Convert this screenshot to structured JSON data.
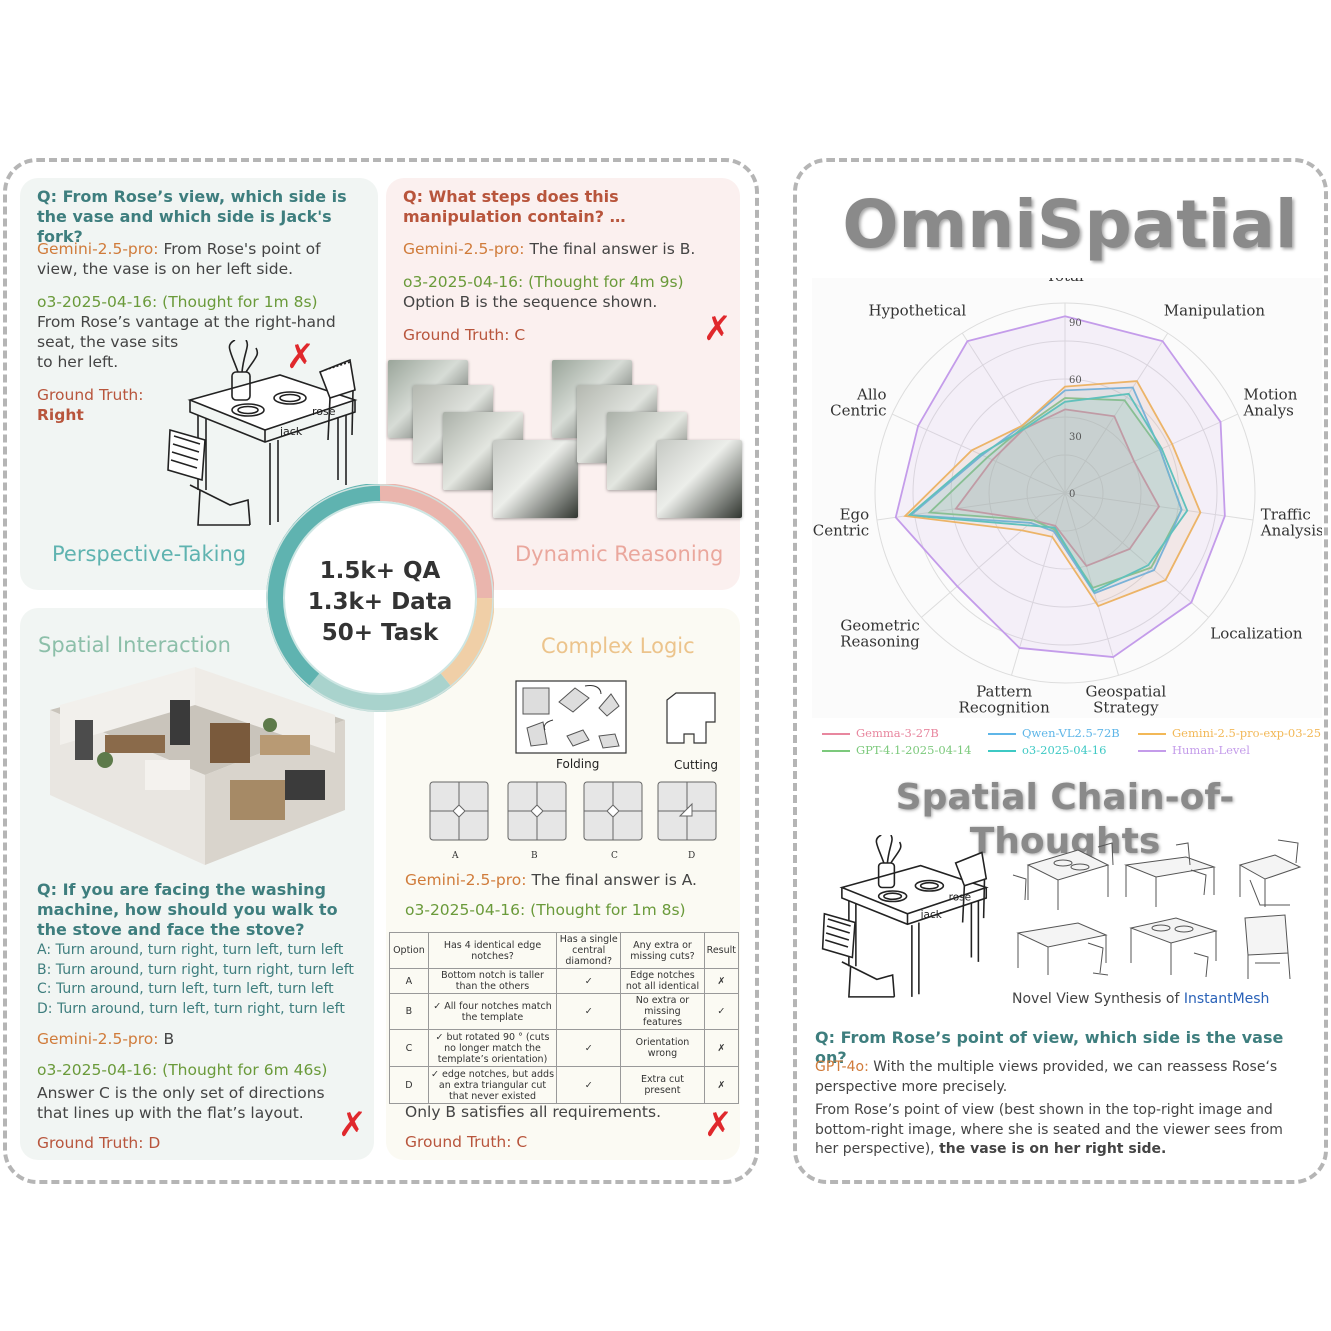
{
  "perspective_panel": {
    "question": "Q: From Rose’s view, which side is the vase and which side is Jack's fork?",
    "gemini_model": "Gemini-2.5-pro:",
    "gemini_answer": "From Rose's point of view, the vase is on her left side.",
    "o3_model": "o3-2025-04-16: (Thought for 1m 8s)",
    "o3_answer_line1": "From Rose’s vantage at the right-hand",
    "o3_answer_line2": "seat, the vase sits",
    "o3_answer_line3": "to her left.",
    "gt_label": "Ground Truth:",
    "gt_value": "Right",
    "cross": "✗",
    "rose_label": "rose",
    "jack_label": "jack",
    "title": "Perspective-Taking"
  },
  "dynamic_panel": {
    "question": "Q: What steps does this manipulation contain? …",
    "gemini_model": "Gemini-2.5-pro:",
    "gemini_answer": "The final answer is B.",
    "o3_model": "o3-2025-04-16: (Thought for 4m 9s)",
    "o3_answer": "Option B is the sequence shown.",
    "gt": "Ground Truth: C",
    "cross": "✗",
    "title": "Dynamic Reasoning"
  },
  "center_stats": {
    "line1": "1.5k+ QA",
    "line2": "1.3k+ Data",
    "line3": "50+ Task"
  },
  "interaction_panel": {
    "title": "Spatial Interaction",
    "question": "Q: If you are facing the washing machine, how should you walk to the stove and face the stove?",
    "options": [
      "A: Turn around, turn right, turn left, turn left",
      "B: Turn around, turn right, turn right, turn left",
      "C: Turn around, turn left, turn left, turn left",
      "D: Turn around, turn left, turn right, turn left"
    ],
    "gemini_model": "Gemini-2.5-pro:",
    "gemini_answer": "B",
    "o3_model": "o3-2025-04-16: (Thought for 6m 46s)",
    "o3_answer": "Answer C is the only set of directions that lines up with the flat’s layout.",
    "gt": "Ground Truth: D",
    "cross": "✗"
  },
  "logic_panel": {
    "title": "Complex Logic",
    "folding_label": "Folding",
    "cutting_label": "Cutting",
    "option_letters": [
      "A",
      "B",
      "C",
      "D"
    ],
    "gemini_model": "Gemini-2.5-pro:",
    "gemini_answer": "The final answer is A.",
    "o3_model": "o3-2025-04-16: (Thought for 1m 8s)",
    "table_header": [
      "Option",
      "Has 4 identical edge notches?",
      "Has a single central diamond?",
      "Any extra or missing cuts?",
      "Result"
    ],
    "table_rows": [
      [
        "A",
        "Bottom notch is taller than the others",
        "✓",
        "Edge notches not all identical",
        "✗"
      ],
      [
        "B",
        "✓ All four notches match the template",
        "✓",
        "No extra or missing features",
        "✓"
      ],
      [
        "C",
        "✓ but rotated 90 ° (cuts no longer match the template’s orientation)",
        "✓",
        "Orientation wrong",
        "✗"
      ],
      [
        "D",
        "✓ edge notches, but adds an extra triangular cut that never existed",
        "✓",
        "Extra cut present",
        "✗"
      ]
    ],
    "conclusion": "Only B satisfies all requirements.",
    "gt": "Ground Truth: C",
    "cross": "✗"
  },
  "right_panel": {
    "title": "OmniSpatial",
    "cot_title": "Spatial Chain-of-Thoughts",
    "nvs_caption_prefix": "Novel View Synthesis of ",
    "nvs_caption_link": "InstantMesh",
    "rose_label": "rose",
    "jack_label": "jack",
    "question": "Q: From Rose’s point of view, which side is the vase on?",
    "gpt_model": "GPT-4o:",
    "gpt_answer": "With the multiple views provided, we can reassess Rose‘s perspective more precisely.",
    "answer_part1": "From Rose’s point of view (best shown in the top-right image and bottom-right image, where she is seated and the viewer sees from her perspective),",
    "answer_part2": "the vase is on her right side."
  },
  "chart_data": {
    "type": "radar",
    "axes": [
      "Total",
      "Manipulation",
      "Motion Analys",
      "Traffic Analysis",
      "Localization",
      "Geospatial Strategy",
      "Pattern Recognition",
      "Geometric Reasoning",
      "Ego Centric",
      "Allo Centric",
      "Hypothetical"
    ],
    "axis_labels": [
      [
        "Total"
      ],
      [
        "Manipulation"
      ],
      [
        "Motion",
        "Analys"
      ],
      [
        "Traffic",
        "Analysis"
      ],
      [
        "Localization"
      ],
      [
        "Geospatial",
        "Strategy"
      ],
      [
        "Pattern",
        "Recognition"
      ],
      [
        "Geometric",
        "Reasoning"
      ],
      [
        "Ego",
        "Centric"
      ],
      [
        "Allo",
        "Centric"
      ],
      [
        "Hypothetical"
      ]
    ],
    "radial_ticks": [
      0,
      30,
      60,
      90
    ],
    "rlim": [
      0,
      100
    ],
    "grid": true,
    "legend_position": "bottom",
    "series": [
      {
        "name": "Gemma-3-27B",
        "color": "#e8879f",
        "values": [
          44,
          48,
          40,
          50,
          45,
          40,
          18,
          22,
          58,
          42,
          40
        ]
      },
      {
        "name": "GPT-4.1-2025-04-14",
        "color": "#7cc97c",
        "values": [
          50,
          58,
          55,
          62,
          60,
          52,
          20,
          22,
          72,
          45,
          41
        ]
      },
      {
        "name": "Qwen-VL2.5-72B",
        "color": "#5fb6e8",
        "values": [
          54,
          66,
          55,
          62,
          62,
          55,
          21,
          24,
          82,
          48,
          42
        ]
      },
      {
        "name": "o3-2025-04-16",
        "color": "#3ec9c4",
        "values": [
          48,
          62,
          56,
          65,
          58,
          54,
          19,
          26,
          83,
          49,
          40
        ]
      },
      {
        "name": "Gemini-2.5-pro-exp-03-25",
        "color": "#f2b857",
        "values": [
          56,
          70,
          62,
          72,
          70,
          62,
          24,
          30,
          85,
          54,
          42
        ]
      },
      {
        "name": "Human-Level",
        "color": "#c49cea",
        "values": [
          93,
          95,
          90,
          85,
          88,
          90,
          85,
          75,
          90,
          85,
          95
        ]
      }
    ]
  },
  "colors": {
    "perspective_bg": "#f1f5f3",
    "dynamic_bg": "#fbf0ef",
    "interaction_bg": "#f1f5f3",
    "logic_bg": "#fbfaf3",
    "teal": "#3e7e7e",
    "cross_red": "#e0282c"
  }
}
